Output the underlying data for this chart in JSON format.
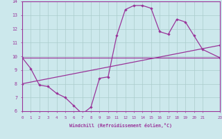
{
  "xlabel": "Windchill (Refroidissement éolien,°C)",
  "bg_color": "#cce8ec",
  "grid_color": "#aacccc",
  "line_color": "#993399",
  "xlim": [
    0,
    23
  ],
  "ylim": [
    6,
    14
  ],
  "xtick_labels": [
    "0",
    "1",
    "2",
    "3",
    "4",
    "5",
    "6",
    "7",
    "8",
    "9",
    "10",
    "11",
    "12",
    "13",
    "14",
    "15",
    "16",
    "17",
    "18",
    "19",
    "20",
    "21",
    "23"
  ],
  "xtick_vals": [
    0,
    1,
    2,
    3,
    4,
    5,
    6,
    7,
    8,
    9,
    10,
    11,
    12,
    13,
    14,
    15,
    16,
    17,
    18,
    19,
    20,
    21,
    23
  ],
  "ytick_vals": [
    6,
    7,
    8,
    9,
    10,
    11,
    12,
    13,
    14
  ],
  "line1_x": [
    0,
    1,
    2,
    3,
    4,
    5,
    6,
    7,
    8,
    9,
    10,
    11,
    12,
    13,
    14,
    15,
    16,
    17,
    18,
    19,
    20,
    21,
    23
  ],
  "line1_y": [
    9.9,
    9.1,
    7.9,
    7.8,
    7.3,
    7.0,
    6.4,
    5.8,
    6.3,
    8.4,
    8.5,
    11.5,
    13.4,
    13.7,
    13.7,
    13.5,
    11.8,
    11.6,
    12.7,
    12.5,
    11.5,
    10.5,
    9.9
  ],
  "line2_x": [
    0,
    23
  ],
  "line2_y": [
    9.9,
    9.9
  ],
  "line3_x": [
    0,
    23
  ],
  "line3_y": [
    8.0,
    10.8
  ]
}
